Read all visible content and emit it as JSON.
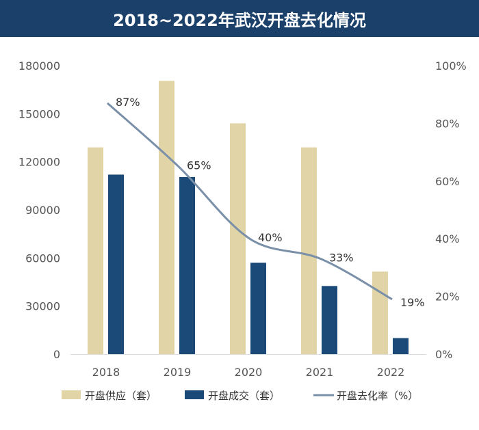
{
  "chart_data": {
    "type": "bar",
    "title": "2018~2022年武汉开盘去化情况",
    "categories": [
      "2018",
      "2019",
      "2020",
      "2021",
      "2022"
    ],
    "series": [
      {
        "name": "开盘供应（套）",
        "type": "bar",
        "axis": "left",
        "color": "#e1d4a6",
        "values": [
          129000,
          170500,
          144000,
          129000,
          51500
        ]
      },
      {
        "name": "开盘成交（套）",
        "type": "bar",
        "axis": "left",
        "color": "#1b4a78",
        "values": [
          112000,
          110500,
          57000,
          42500,
          10000
        ]
      },
      {
        "name": "开盘去化率（%）",
        "type": "line",
        "axis": "right",
        "color": "#7a8fa8",
        "values": [
          87,
          65,
          40,
          33,
          19
        ],
        "labels": [
          "87%",
          "65%",
          "40%",
          "33%",
          "19%"
        ]
      }
    ],
    "yleft": {
      "range": [
        0,
        180000
      ],
      "ticks": [
        "0",
        "30000",
        "60000",
        "90000",
        "120000",
        "150000",
        "180000"
      ]
    },
    "yright": {
      "range": [
        0,
        100
      ],
      "ticks": [
        "0%",
        "20%",
        "40%",
        "60%",
        "80%",
        "100%"
      ]
    },
    "grid": false,
    "legend": "bottom"
  }
}
